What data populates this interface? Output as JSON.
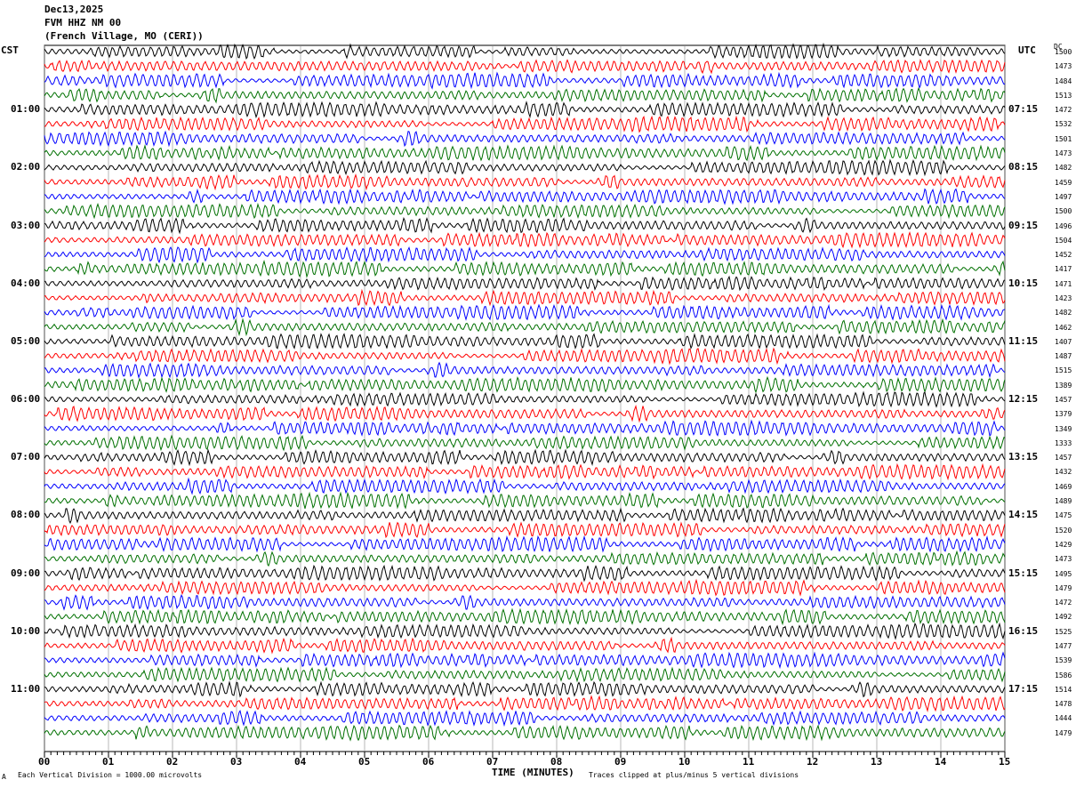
{
  "header": {
    "date": "Dec13,2025",
    "station": "FVM HHZ NM 00",
    "location": "(French Village, MO (CERI))"
  },
  "left_label": "CST",
  "right_label": "UTC",
  "count_label": "DC",
  "footer": {
    "scale_note": "Each Vertical Division = 1000.00 microvolts",
    "xlabel": "TIME (MINUTES)",
    "clip_note": "Traces clipped at plus/minus 5 vertical divisions",
    "corner_mark": "A"
  },
  "chart_data": {
    "type": "line",
    "xlabel": "TIME (MINUTES)",
    "xlim": [
      0,
      15
    ],
    "x_ticks": [
      "00",
      "01",
      "02",
      "03",
      "04",
      "05",
      "06",
      "07",
      "08",
      "09",
      "10",
      "11",
      "12",
      "13",
      "14",
      "15"
    ],
    "grid": true,
    "trace_colors": [
      "#000000",
      "#ff0000",
      "#0000ff",
      "#007000"
    ],
    "cst_hour_labels": [
      "01:00",
      "02:00",
      "03:00",
      "04:00",
      "05:00",
      "06:00",
      "07:00",
      "08:00",
      "09:00",
      "10:00",
      "11:00"
    ],
    "utc_hour_labels": [
      "07:15",
      "08:15",
      "09:15",
      "10:15",
      "11:15",
      "12:15",
      "13:15",
      "14:15",
      "15:15",
      "16:15",
      "17:15"
    ],
    "trace_dc_values": [
      "1500",
      "1473",
      "1484",
      "1513",
      "1472",
      "1532",
      "1501",
      "1473",
      "1482",
      "1459",
      "1497",
      "1500",
      "1496",
      "1504",
      "1452",
      "1417",
      "1471",
      "1423",
      "1482",
      "1462",
      "1407",
      "1487",
      "1515",
      "1389",
      "1457",
      "1379",
      "1349",
      "1333",
      "1457",
      "1432",
      "1469",
      "1489",
      "1475",
      "1520",
      "1429",
      "1473",
      "1495",
      "1479",
      "1472",
      "1492",
      "1525",
      "1477",
      "1539",
      "1586",
      "1514",
      "1478",
      "1444",
      "1479"
    ]
  }
}
